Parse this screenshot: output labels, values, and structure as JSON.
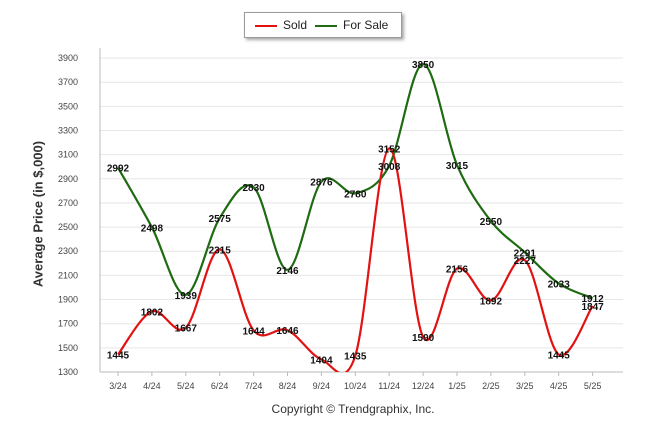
{
  "chart_data": {
    "type": "line",
    "categories": [
      "3/24",
      "4/24",
      "5/24",
      "6/24",
      "7/24",
      "8/24",
      "9/24",
      "10/24",
      "11/24",
      "12/24",
      "1/25",
      "2/25",
      "3/25",
      "4/25",
      "5/25"
    ],
    "series": [
      {
        "name": "Sold",
        "color": "#e31212",
        "values": [
          1445,
          1802,
          1667,
          2315,
          1644,
          1646,
          1404,
          1435,
          3152,
          1590,
          2156,
          1892,
          2227,
          1445,
          1847
        ]
      },
      {
        "name": "For Sale",
        "color": "#1f6b12",
        "values": [
          2992,
          2498,
          1939,
          2575,
          2830,
          2146,
          2876,
          2780,
          3008,
          3850,
          3015,
          2550,
          2291,
          2033,
          1912
        ]
      }
    ],
    "yticks": [
      1300,
      1500,
      1700,
      1900,
      2100,
      2300,
      2500,
      2700,
      2900,
      3100,
      3300,
      3500,
      3700,
      3900
    ],
    "ylim": [
      1300,
      3950
    ],
    "ylabel": "Average Price (in $,000)",
    "xlabel": "",
    "legend_position": "top-center",
    "grid": true
  },
  "footer": {
    "copyright": "Copyright © Trendgraphix, Inc."
  }
}
